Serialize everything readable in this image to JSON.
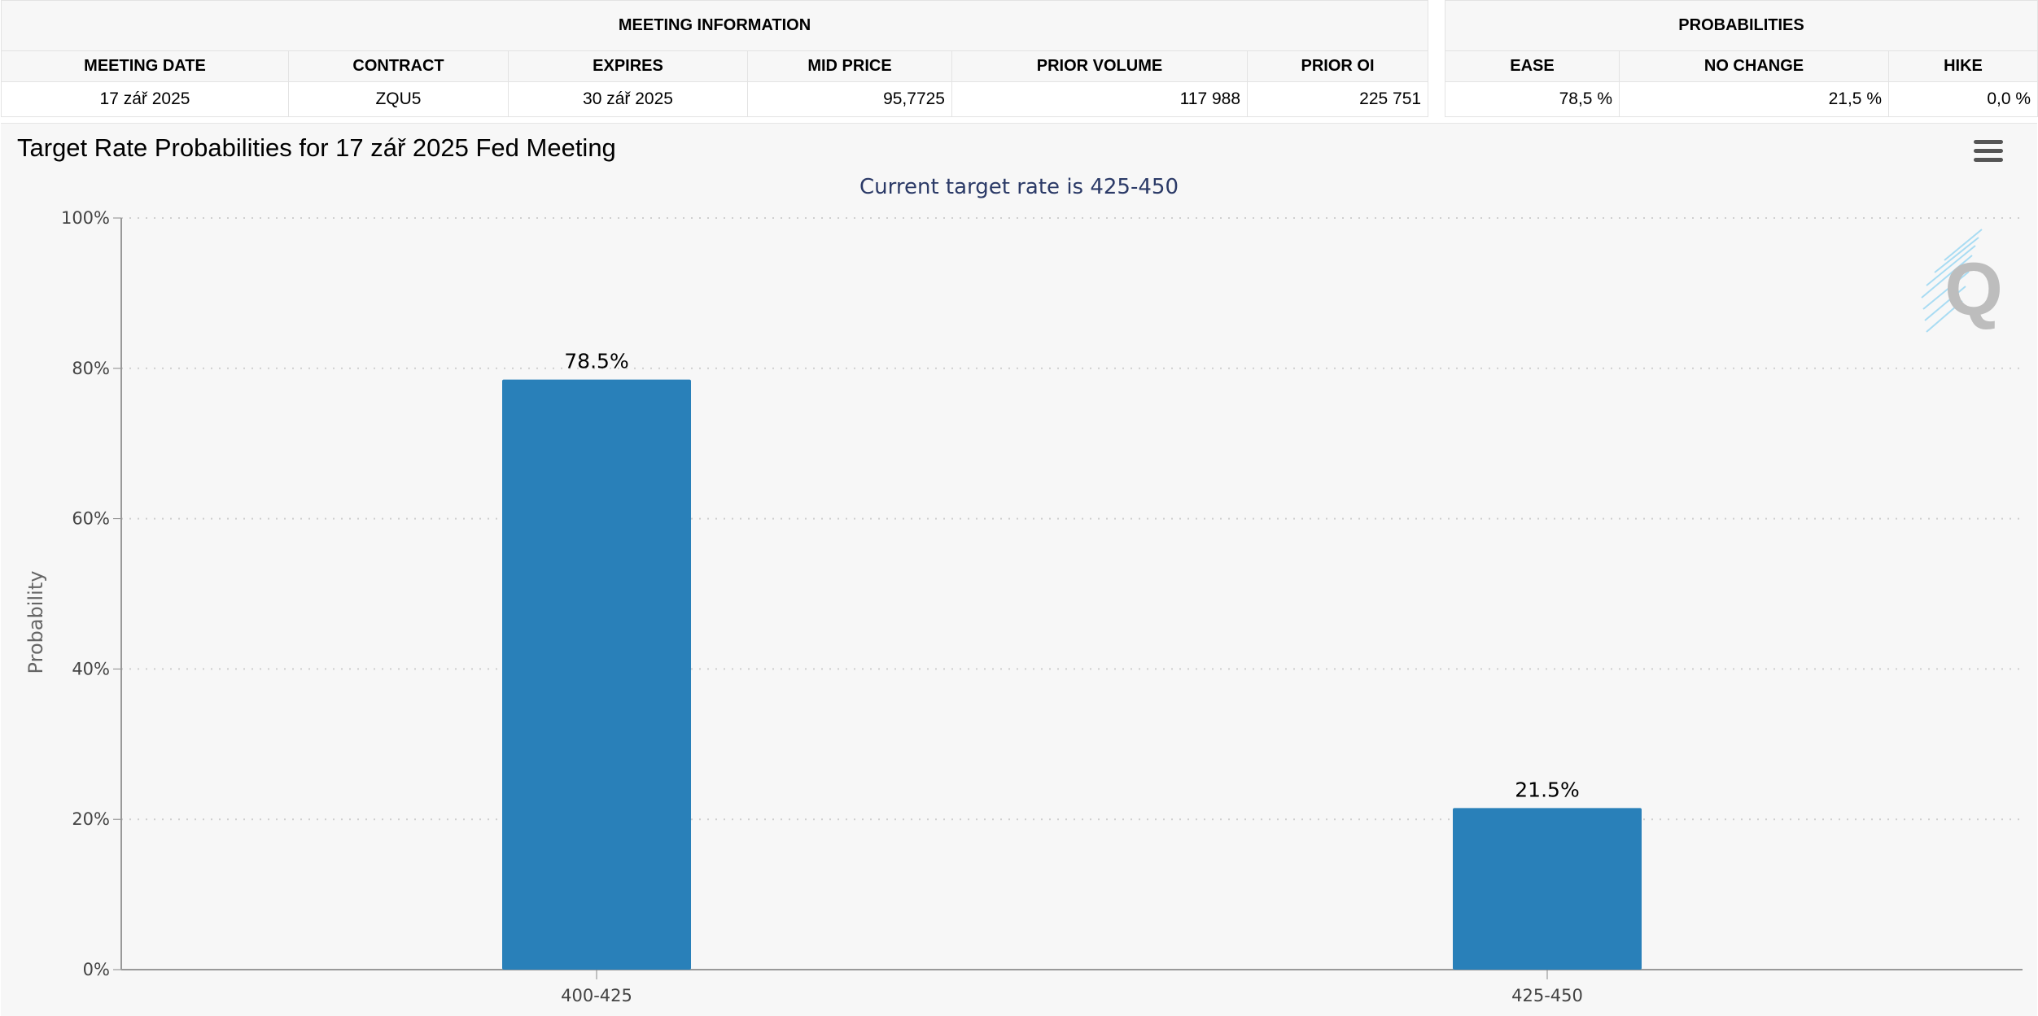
{
  "meeting_info": {
    "header": "MEETING INFORMATION",
    "columns": [
      "MEETING DATE",
      "CONTRACT",
      "EXPIRES",
      "MID PRICE",
      "PRIOR VOLUME",
      "PRIOR OI"
    ],
    "row": [
      "17 zář 2025",
      "ZQU5",
      "30 zář 2025",
      "95,7725",
      "117 988",
      "225 751"
    ]
  },
  "probabilities": {
    "header": "PROBABILITIES",
    "columns": [
      "EASE",
      "NO CHANGE",
      "HIKE"
    ],
    "row": [
      "78,5 %",
      "21,5 %",
      "0,0 %"
    ]
  },
  "chart": {
    "title": "Target Rate Probabilities for 17 zář 2025 Fed Meeting",
    "menu_icon": "hamburger-menu-icon",
    "watermark_icon": "q-logo-icon",
    "bar_color": "#2980b9"
  },
  "chart_data": {
    "type": "bar",
    "title": "Target Rate Probabilities for 17 zář 2025 Fed Meeting",
    "subtitle": "Current target rate is 425-450",
    "xlabel": "",
    "ylabel": "Probability",
    "categories": [
      "400-425",
      "425-450"
    ],
    "values": [
      78.5,
      21.5
    ],
    "data_labels": [
      "78.5%",
      "21.5%"
    ],
    "ylim": [
      0,
      100
    ],
    "yticks": [
      0,
      20,
      40,
      60,
      80,
      100
    ],
    "ytick_labels": [
      "0%",
      "20%",
      "40%",
      "60%",
      "80%",
      "100%"
    ],
    "grid": true,
    "legend": "none"
  }
}
